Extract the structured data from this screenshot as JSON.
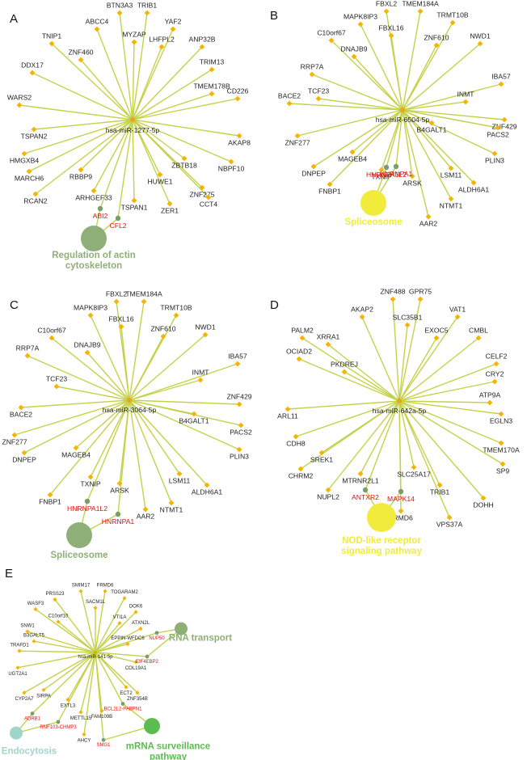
{
  "panels": [
    {
      "id": "A",
      "letter": "A",
      "hub": "hsa-miR-1277-5p",
      "genes": [
        "BTN3A3",
        "TRIB1",
        "ABCC4",
        "YAF2",
        "TNIP1",
        "MYZAP",
        "LHFPL2",
        "ANP32B",
        "ZNF460",
        "DDX17",
        "TRIM13",
        "TMEM178B",
        "CD226",
        "WARS2",
        "TSPAN2",
        "AKAP8",
        "HMGXB4",
        "ZBTB18",
        "NBPF10",
        "MARCH6",
        "RBBP9",
        "HUWE1",
        "ZNF275",
        "RCAN2",
        "ARHGEF33",
        "TSPAN1",
        "ZER1",
        "CCT4"
      ],
      "pathway_genes": [
        "ABI2",
        "CFL2"
      ],
      "pathways": [
        {
          "name_lines": [
            "Regulation of actin",
            "cytoskeleton"
          ],
          "color": "#8faf78"
        }
      ]
    },
    {
      "id": "B",
      "letter": "B",
      "hub": "hsa-miR-6504-5p",
      "genes": [
        "FBXL2",
        "TMEM184A",
        "MAPK8IP3",
        "TRMT10B",
        "FBXL16",
        "C10orf67",
        "ZNF610",
        "NWD1",
        "DNAJB9",
        "RRP7A",
        "IBA57",
        "INMT",
        "TCF23",
        "BACE2",
        "ZNF429",
        "B4GALT1",
        "PACS2",
        "ZNF277",
        "MAGEB4",
        "PLIN3",
        "LSM11",
        "DNPEP",
        "TXNIP",
        "ARSK",
        "ALDH6A1",
        "FNBP1",
        "NTMT1",
        "AAR2"
      ],
      "pathway_genes": [
        "HNRNPA1",
        "HNRNPA1L2"
      ],
      "pathways": [
        {
          "name_lines": [
            "Spliceosome"
          ],
          "color": "#f1ec3c"
        }
      ]
    },
    {
      "id": "C",
      "letter": "C",
      "hub": "hsa-miR-3064-5p",
      "genes": [
        "FBXL2",
        "TMEM184A",
        "MAPK8IP3",
        "TRMT10B",
        "FBXL16",
        "C10orf67",
        "ZNF610",
        "NWD1",
        "DNAJB9",
        "RRP7A",
        "IBA57",
        "INMT",
        "TCF23",
        "BACE2",
        "ZNF429",
        "B4GALT1",
        "PACS2",
        "ZNF277",
        "MAGEB4",
        "PLIN3",
        "LSM11",
        "DNPEP",
        "TXNIP",
        "ARSK",
        "ALDH6A1",
        "FNBP1",
        "NTMT1",
        "AAR2"
      ],
      "pathway_genes": [
        "HNRNPA1L2",
        "HNRNPA1"
      ],
      "pathways": [
        {
          "name_lines": [
            "Spliceosome"
          ],
          "color": "#8faf78"
        }
      ]
    },
    {
      "id": "D",
      "letter": "D",
      "hub": "hsa-miR-642a-5p",
      "genes": [
        "ZNF488",
        "GPR75",
        "AKAP2",
        "VAT1",
        "SLC35B1",
        "PALM2",
        "EXOC5",
        "CMBL",
        "XRRA1",
        "OCIAD2",
        "CELF2",
        "PKDREJ",
        "ATP9A",
        "CRY2",
        "ARL11",
        "EGLN3",
        "CDH8",
        "TMEM170A",
        "SP9",
        "SREK1",
        "CHRM2",
        "TRIB1",
        "DOHH",
        "MTRNR2L1",
        "SLC25A17",
        "NUPL2",
        "VPS37A",
        "FRMD6"
      ],
      "pathway_genes": [
        "ANTXR2",
        "MAPK14"
      ],
      "pathways": [
        {
          "name_lines": [
            "NOD-like receptor",
            "signaling pathway"
          ],
          "color": "#f1ec3c"
        }
      ]
    },
    {
      "id": "E",
      "letter": "E",
      "hub": "hsa-miR-141-5p",
      "genes": [
        "SMIM17",
        "FRMD6",
        "TOGARAM2",
        "PRSS23",
        "WASF3",
        "SACM1L",
        "DOK6",
        "C10orf10",
        "VTI1A",
        "ATXN2L",
        "SNW1",
        "EPPIN-WFDC6",
        "B3GALT5",
        "TRAFD1",
        "COL19A1",
        "UGT2A1",
        "SIRPA",
        "ECT2",
        "ZNF354B",
        "CYP2A7",
        "EXTL3",
        "METTL15",
        "FAM109B",
        "AHCY"
      ],
      "pathway_genes": [
        "NUP50",
        "EIF4EBP2",
        "BCL2L2-PABPN1",
        "ADRB1",
        "RNF103-CHMP3",
        "SMG1"
      ],
      "pathways": [
        {
          "name_lines": [
            "RNA transport"
          ],
          "color": "#8faf78"
        },
        {
          "name_lines": [
            "Endocytosis"
          ],
          "color": "#9fd6cc"
        },
        {
          "name_lines": [
            "mRNA surveillance",
            "pathway"
          ],
          "color": "#5bbd4f"
        }
      ]
    }
  ]
}
